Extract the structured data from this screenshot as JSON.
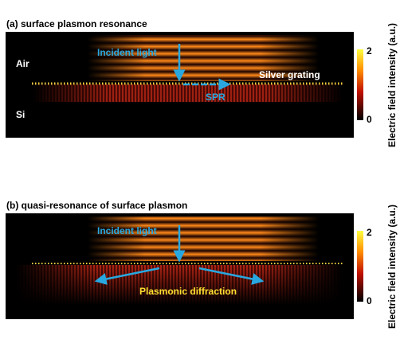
{
  "panels": [
    {
      "title": "(a) surface plasmon resonance",
      "labels": [
        "Air",
        "Si",
        "Incident light",
        "Silver grating",
        "SPR"
      ],
      "colorbar": {
        "ticks": [
          2,
          0
        ],
        "label": "Electric field intensity (a.u.)"
      }
    },
    {
      "title": "(b) quasi-resonance of surface plasmon",
      "labels": [
        "Incident light",
        "Plasmonic diffraction"
      ],
      "colorbar": {
        "ticks": [
          2,
          0
        ],
        "label": "Electric field intensity (a.u.)"
      }
    }
  ]
}
